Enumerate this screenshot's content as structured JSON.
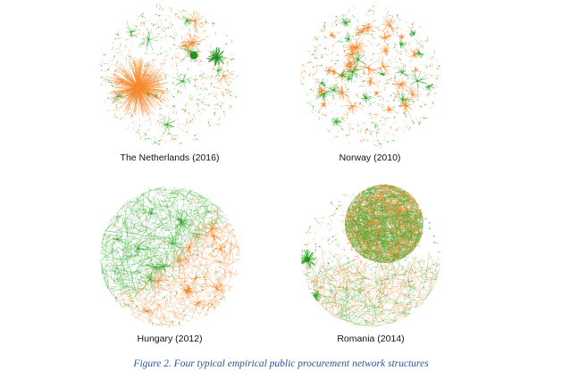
{
  "caption": "Figure 2. Four typical empirical public procurement network structures",
  "colors": {
    "orange": "#f7862a",
    "green": "#2fa82a",
    "dark_green": "#1e8f1e"
  },
  "panels": [
    {
      "label": "The Netherlands (2016)"
    },
    {
      "label": "Norway (2010)"
    },
    {
      "label": "Hungary (2012)"
    },
    {
      "label": "Romania (2014)"
    }
  ]
}
